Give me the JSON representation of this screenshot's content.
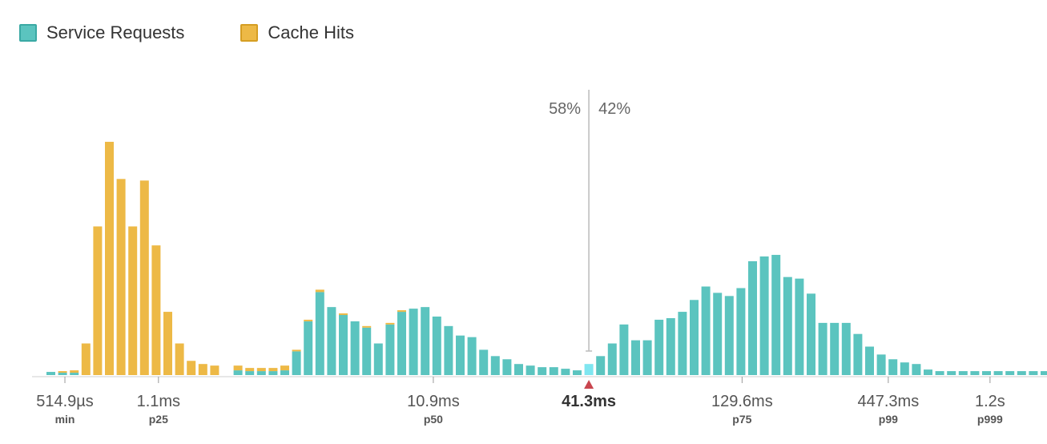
{
  "colors": {
    "service": "#5bc4bf",
    "cache": "#edb946",
    "highlight": "#7fe6f0",
    "axis": "#cfcfcf",
    "marker": "#c9464f",
    "divider": "#bbbbbb"
  },
  "chart_data": {
    "type": "bar",
    "stacked": true,
    "legend_position": "top-left",
    "grid": false,
    "series": [
      {
        "name": "Service Requests",
        "color": "#5bc4bf",
        "values": [
          4,
          3,
          3,
          0,
          0,
          0,
          0,
          0,
          0,
          0,
          0,
          0,
          0,
          0,
          0,
          0,
          6,
          5,
          5,
          5,
          6,
          30,
          68,
          105,
          86,
          76,
          68,
          60,
          40,
          64,
          80,
          84,
          86,
          74,
          62,
          50,
          48,
          32,
          24,
          20,
          14,
          12,
          10,
          10,
          8,
          6,
          14,
          24,
          40,
          64,
          44,
          44,
          70,
          72,
          80,
          95,
          112,
          104,
          100,
          110,
          144,
          150,
          152,
          124,
          122,
          103,
          66,
          66,
          66,
          52,
          36,
          26,
          20,
          16,
          14,
          7,
          5,
          5,
          5,
          5,
          5,
          5,
          5,
          5,
          5,
          5,
          5
        ]
      },
      {
        "name": "Cache Hits",
        "color": "#edb946",
        "values": [
          0,
          2,
          3,
          40,
          188,
          295,
          248,
          188,
          246,
          164,
          80,
          40,
          18,
          14,
          12,
          0,
          6,
          4,
          4,
          4,
          6,
          2,
          2,
          3,
          0,
          2,
          0,
          2,
          0,
          2,
          2,
          0,
          0,
          0,
          0,
          0,
          0,
          0,
          0,
          0,
          0,
          0,
          0,
          0,
          0,
          0,
          0,
          0,
          0,
          0,
          0,
          0,
          0,
          0,
          0,
          0,
          0,
          0,
          0,
          0,
          0,
          0,
          0,
          0,
          0,
          0,
          0,
          0,
          0,
          0,
          0,
          0,
          0,
          0,
          0,
          0,
          0,
          0,
          0,
          0,
          0,
          0,
          0,
          0,
          0,
          0,
          0
        ]
      }
    ],
    "highlight_bin": 46,
    "ylim": [
      0,
      300
    ],
    "ticks": [
      {
        "label": "514.9µs",
        "sub": "min",
        "bin": 1.2,
        "highlight": false
      },
      {
        "label": "1.1ms",
        "sub": "p25",
        "bin": 9.2,
        "highlight": false
      },
      {
        "label": "10.9ms",
        "sub": "p50",
        "bin": 32.7,
        "highlight": false
      },
      {
        "label": "41.3ms",
        "sub": "",
        "bin": 46,
        "highlight": true
      },
      {
        "label": "129.6ms",
        "sub": "p75",
        "bin": 59.1,
        "highlight": false
      },
      {
        "label": "447.3ms",
        "sub": "p99",
        "bin": 71.6,
        "highlight": false
      },
      {
        "label": "1.2s",
        "sub": "p999",
        "bin": 80.3,
        "highlight": false
      }
    ],
    "split": {
      "left_label": "58%",
      "right_label": "42%",
      "bin": 46
    }
  }
}
